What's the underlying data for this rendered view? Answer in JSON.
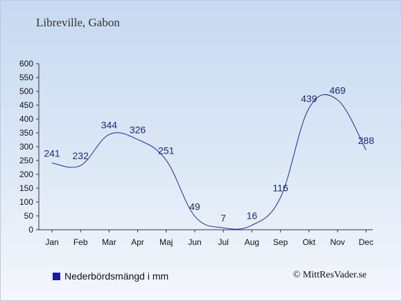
{
  "title": "Libreville, Gabon",
  "legend_label": "Nederbördsmängd i mm",
  "credit": "© MittResVader.se",
  "colors": {
    "line": "#1c2a9c",
    "label": "#1c2a6c",
    "legend_swatch": "#1a1aa6"
  },
  "chart_data": {
    "type": "line",
    "categories": [
      "Jan",
      "Feb",
      "Mar",
      "Apr",
      "Maj",
      "Jun",
      "Jul",
      "Aug",
      "Sep",
      "Okt",
      "Nov",
      "Dec"
    ],
    "series": [
      {
        "name": "Nederbördsmängd i mm",
        "values": [
          241,
          232,
          344,
          326,
          251,
          49,
          7,
          16,
          116,
          439,
          469,
          288
        ]
      }
    ],
    "yticks": [
      0,
      50,
      100,
      150,
      200,
      250,
      300,
      350,
      400,
      450,
      500,
      550,
      600
    ],
    "ylim": [
      0,
      600
    ],
    "grid": false
  }
}
